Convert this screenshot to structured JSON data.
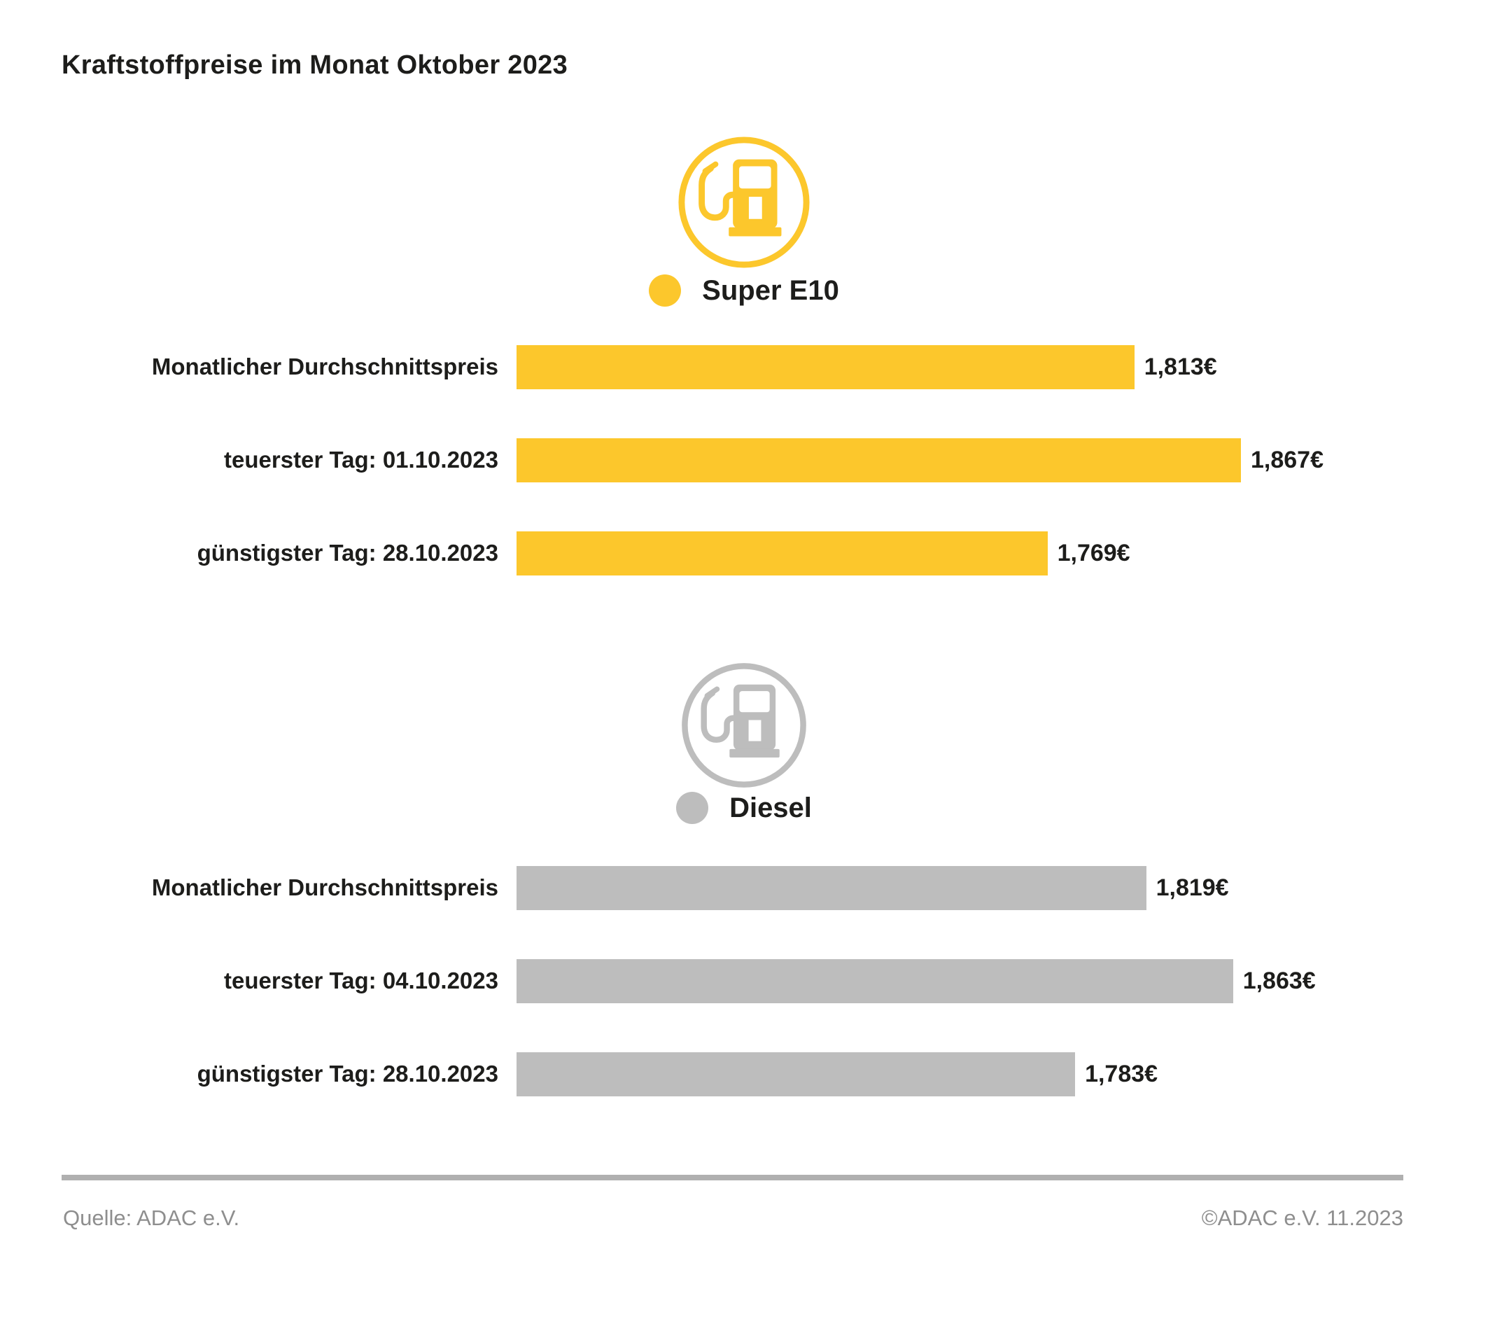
{
  "colors": {
    "super_e10": "#FCC72C",
    "diesel": "#BDBDBD",
    "text": "#1D1D1B",
    "footer_text": "#8E8E8E",
    "rule": "#B0B0B0"
  },
  "chart_data": {
    "type": "bar",
    "orientation": "horizontal",
    "title": "Kraftstoffpreise im Monat Oktober 2023",
    "xlim": [
      1.5,
      1.95
    ],
    "unit_suffix": "€",
    "grid": false,
    "legend_position": "icon-and-dot-above-each-series",
    "series": [
      {
        "name": "Super E10",
        "icon": "fuel-pump-icon",
        "color": "#FCC72C",
        "rows": [
          {
            "label": "Monatlicher Durchschnittspreis",
            "value": 1.813,
            "value_label": "1,813€"
          },
          {
            "label": "teuerster Tag: 01.10.2023",
            "value": 1.867,
            "value_label": "1,867€"
          },
          {
            "label": "günstigster Tag: 28.10.2023",
            "value": 1.769,
            "value_label": "1,769€"
          }
        ]
      },
      {
        "name": "Diesel",
        "icon": "fuel-pump-icon",
        "color": "#BDBDBD",
        "rows": [
          {
            "label": "Monatlicher Durchschnittspreis",
            "value": 1.819,
            "value_label": "1,819€"
          },
          {
            "label": "teuerster Tag: 04.10.2023",
            "value": 1.863,
            "value_label": "1,863€"
          },
          {
            "label": "günstigster Tag: 28.10.2023",
            "value": 1.783,
            "value_label": "1,783€"
          }
        ]
      }
    ]
  },
  "footer": {
    "source": "Quelle: ADAC e.V.",
    "copyright": "©ADAC e.V. 11.2023"
  }
}
